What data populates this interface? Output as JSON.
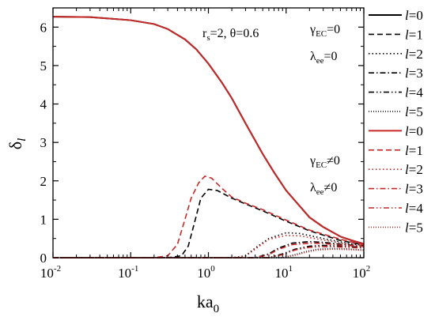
{
  "chart_data": {
    "type": "line",
    "xscale": "log",
    "xlim": [
      0.01,
      100
    ],
    "ylim": [
      0,
      6.5
    ],
    "grid": false,
    "legend_position": "right, outside",
    "xlabel_main": "ka",
    "xlabel_sub": "0",
    "ylabel_main": "δ",
    "ylabel_sub": "l",
    "x_tick_labels": [
      {
        "x": 0.01,
        "base": "10",
        "exp": "-2"
      },
      {
        "x": 0.1,
        "base": "10",
        "exp": "-1"
      },
      {
        "x": 1,
        "base": "10",
        "exp": "0"
      },
      {
        "x": 10,
        "base": "10",
        "exp": "1"
      },
      {
        "x": 100,
        "base": "10",
        "exp": "2"
      }
    ],
    "y_ticks": [
      0,
      1,
      2,
      3,
      4,
      5,
      6
    ],
    "y_tick_labels": [
      "0",
      "1",
      "2",
      "3",
      "4",
      "5",
      "6"
    ],
    "annotations": {
      "params": {
        "r": "r",
        "r_sub": "s",
        "r_val": "=2, θ=0.6"
      },
      "top_gamma": {
        "sym": "γ",
        "sub": "EC",
        "rel": "=0"
      },
      "top_lambda": {
        "sym": "λ",
        "sub": "ee",
        "rel": "=0"
      },
      "bottom_gamma": {
        "sym": "γ",
        "sub": "EC",
        "rel": "≠0"
      },
      "bottom_lambda": {
        "sym": "λ",
        "sub": "ee",
        "rel": "≠0"
      }
    },
    "legend": [
      {
        "l": "l",
        "eq": "=0",
        "color": "#000000",
        "dash": "solid"
      },
      {
        "l": "l",
        "eq": "=1",
        "color": "#000000",
        "dash": "dash"
      },
      {
        "l": "l",
        "eq": "=2",
        "color": "#000000",
        "dash": "dot"
      },
      {
        "l": "l",
        "eq": "=3",
        "color": "#000000",
        "dash": "dashdot"
      },
      {
        "l": "l",
        "eq": "=4",
        "color": "#000000",
        "dash": "dashdotdot"
      },
      {
        "l": "l",
        "eq": "=5",
        "color": "#000000",
        "dash": "shortdot"
      },
      {
        "l": "l",
        "eq": "=0",
        "color": "#c62828",
        "dash": "solid"
      },
      {
        "l": "l",
        "eq": "=1",
        "color": "#c62828",
        "dash": "dash"
      },
      {
        "l": "l",
        "eq": "=2",
        "color": "#c62828",
        "dash": "dot"
      },
      {
        "l": "l",
        "eq": "=3",
        "color": "#c62828",
        "dash": "dashdot"
      },
      {
        "l": "l",
        "eq": "=4",
        "color": "#c62828",
        "dash": "dashdotdot"
      },
      {
        "l": "l",
        "eq": "=5",
        "color": "#c62828",
        "dash": "shortdot"
      }
    ],
    "series": [
      {
        "group": "black",
        "l": 0,
        "color": "#000000",
        "dash": "solid",
        "x": [
          0.01,
          0.03,
          0.1,
          0.2,
          0.3,
          0.5,
          0.7,
          1,
          1.5,
          2,
          3,
          5,
          7,
          10,
          20,
          30,
          50,
          70,
          100
        ],
        "y": [
          6.27,
          6.26,
          6.18,
          6.08,
          5.95,
          5.68,
          5.42,
          5.05,
          4.55,
          4.15,
          3.5,
          2.7,
          2.22,
          1.75,
          1.05,
          0.8,
          0.55,
          0.45,
          0.36
        ]
      },
      {
        "group": "black",
        "l": 1,
        "color": "#000000",
        "dash": "dash",
        "x": [
          0.01,
          0.3,
          0.45,
          0.55,
          0.65,
          0.8,
          1,
          1.3,
          2,
          3,
          5,
          10,
          20,
          50,
          100
        ],
        "y": [
          0,
          0,
          0.05,
          0.3,
          0.85,
          1.55,
          1.78,
          1.75,
          1.55,
          1.4,
          1.22,
          0.95,
          0.7,
          0.45,
          0.33
        ]
      },
      {
        "group": "black",
        "l": 2,
        "color": "#000000",
        "dash": "dot",
        "x": [
          0.01,
          2,
          3,
          4,
          6,
          10,
          15,
          30,
          60,
          100
        ],
        "y": [
          0,
          0,
          0.05,
          0.25,
          0.5,
          0.65,
          0.63,
          0.5,
          0.38,
          0.32
        ]
      },
      {
        "group": "black",
        "l": 3,
        "color": "#000000",
        "dash": "dashdot",
        "x": [
          0.01,
          4,
          6,
          8,
          12,
          20,
          30,
          50,
          100
        ],
        "y": [
          0,
          0,
          0.1,
          0.25,
          0.38,
          0.42,
          0.4,
          0.35,
          0.3
        ]
      },
      {
        "group": "black",
        "l": 4,
        "color": "#000000",
        "dash": "dashdotdot",
        "x": [
          0.01,
          6,
          9,
          13,
          20,
          30,
          50,
          100
        ],
        "y": [
          0,
          0,
          0.1,
          0.22,
          0.3,
          0.32,
          0.3,
          0.27
        ]
      },
      {
        "group": "black",
        "l": 5,
        "color": "#000000",
        "dash": "shortdot",
        "x": [
          0.01,
          9,
          13,
          18,
          25,
          40,
          60,
          100
        ],
        "y": [
          0,
          0,
          0.08,
          0.16,
          0.22,
          0.24,
          0.23,
          0.2
        ]
      },
      {
        "group": "red",
        "l": 0,
        "color": "#c62828",
        "dash": "solid",
        "x": [
          0.01,
          0.03,
          0.1,
          0.2,
          0.3,
          0.5,
          0.7,
          1,
          1.5,
          2,
          3,
          5,
          7,
          10,
          20,
          30,
          50,
          70,
          100
        ],
        "y": [
          6.27,
          6.26,
          6.18,
          6.08,
          5.95,
          5.68,
          5.42,
          5.05,
          4.55,
          4.15,
          3.5,
          2.7,
          2.22,
          1.75,
          1.05,
          0.8,
          0.55,
          0.45,
          0.36
        ]
      },
      {
        "group": "red",
        "l": 1,
        "color": "#c62828",
        "dash": "dash",
        "x": [
          0.01,
          0.2,
          0.3,
          0.4,
          0.5,
          0.6,
          0.75,
          0.9,
          1.1,
          1.5,
          2,
          3,
          5,
          10,
          20,
          50,
          100
        ],
        "y": [
          0,
          0,
          0.05,
          0.35,
          1.0,
          1.55,
          1.95,
          2.12,
          2.07,
          1.8,
          1.58,
          1.42,
          1.25,
          0.98,
          0.72,
          0.48,
          0.33
        ]
      },
      {
        "group": "red",
        "l": 2,
        "color": "#c62828",
        "dash": "dot",
        "x": [
          0.01,
          2,
          3,
          4,
          6,
          10,
          15,
          30,
          60,
          100
        ],
        "y": [
          0,
          0,
          0.04,
          0.22,
          0.48,
          0.58,
          0.57,
          0.46,
          0.36,
          0.3
        ]
      },
      {
        "group": "red",
        "l": 3,
        "color": "#c62828",
        "dash": "dashdot",
        "x": [
          0.01,
          4,
          6,
          8,
          12,
          20,
          30,
          50,
          100
        ],
        "y": [
          0,
          0,
          0.08,
          0.22,
          0.34,
          0.38,
          0.37,
          0.33,
          0.29
        ]
      },
      {
        "group": "red",
        "l": 4,
        "color": "#c62828",
        "dash": "dashdotdot",
        "x": [
          0.01,
          6,
          9,
          13,
          20,
          30,
          50,
          100
        ],
        "y": [
          0,
          0,
          0.08,
          0.2,
          0.27,
          0.29,
          0.28,
          0.25
        ]
      },
      {
        "group": "red",
        "l": 5,
        "color": "#c62828",
        "dash": "shortdot",
        "x": [
          0.01,
          9,
          13,
          18,
          25,
          40,
          60,
          100
        ],
        "y": [
          0,
          0,
          0.06,
          0.14,
          0.2,
          0.22,
          0.21,
          0.19
        ]
      }
    ]
  }
}
